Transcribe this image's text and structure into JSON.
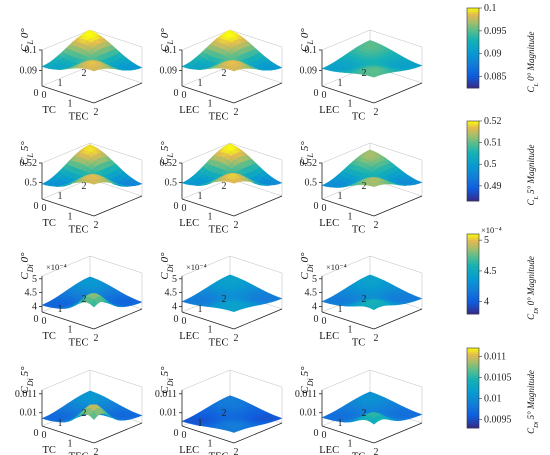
{
  "chart_data": {
    "type": "surface3d-grid",
    "colormap": "parula",
    "rows": [
      {
        "zlabel": "C_L 0°",
        "colorbar": {
          "label": "C_L 0° Magnitude",
          "range": [
            0.0825,
            0.1
          ],
          "ticks": [
            "0.1",
            "0.095",
            "0.09",
            "0.085"
          ],
          "exponent": ""
        },
        "zticks": [
          "0.1",
          "0.09"
        ],
        "zrange": [
          0.0825,
          0.1
        ],
        "exponent": "",
        "panels": [
          {
            "xlabel": "TEC",
            "ylabel": "TC",
            "xticks": [
              "0",
              "1",
              "2"
            ],
            "yticks": [
              "0",
              "1",
              "2"
            ],
            "mean": 0.095,
            "amp": 0.004,
            "tilt": 0.002,
            "peak": 0
          },
          {
            "xlabel": "TEC",
            "ylabel": "LEC",
            "xticks": [
              "0",
              "1",
              "2"
            ],
            "yticks": [
              "0",
              "1",
              "2"
            ],
            "mean": 0.095,
            "amp": 0.004,
            "tilt": 0.002,
            "peak": 0
          },
          {
            "xlabel": "TC",
            "ylabel": "LEC",
            "xticks": [
              "0",
              "1",
              "2"
            ],
            "yticks": [
              "0",
              "1",
              "2"
            ],
            "mean": 0.093,
            "amp": 0.002,
            "tilt": 0,
            "peak": 0
          }
        ]
      },
      {
        "zlabel": "C_L 5°",
        "colorbar": {
          "label": "C_L 5° Magnitude",
          "range": [
            0.483,
            0.52
          ],
          "ticks": [
            "0.52",
            "0.51",
            "0.5",
            "0.49"
          ],
          "exponent": ""
        },
        "zticks": [
          "0.52",
          "0.5"
        ],
        "zrange": [
          0.483,
          0.52
        ],
        "exponent": "",
        "panels": [
          {
            "xlabel": "TEC",
            "ylabel": "TC",
            "xticks": [
              "0",
              "1",
              "2"
            ],
            "yticks": [
              "0",
              "1",
              "2"
            ],
            "mean": 0.507,
            "amp": 0.01,
            "tilt": 0.003,
            "peak": 0
          },
          {
            "xlabel": "TEC",
            "ylabel": "LEC",
            "xticks": [
              "0",
              "1",
              "2"
            ],
            "yticks": [
              "0",
              "1",
              "2"
            ],
            "mean": 0.508,
            "amp": 0.01,
            "tilt": 0.003,
            "peak": 0
          },
          {
            "xlabel": "TC",
            "ylabel": "LEC",
            "xticks": [
              "0",
              "1",
              "2"
            ],
            "yticks": [
              "0",
              "1",
              "2"
            ],
            "mean": 0.505,
            "amp": 0.008,
            "tilt": 0,
            "peak": 0
          }
        ]
      },
      {
        "zlabel": "C_Di 0°",
        "colorbar": {
          "label": "C_Di 0° Magnitude",
          "range": [
            3.8,
            5.1
          ],
          "ticks": [
            "5",
            "4.5",
            "4"
          ],
          "exponent": "×10⁻⁴"
        },
        "zticks": [
          "5",
          "4.5",
          "4"
        ],
        "zrange": [
          3.8,
          5.1
        ],
        "exponent": "×10⁻⁴",
        "panels": [
          {
            "xlabel": "TEC",
            "ylabel": "TC",
            "xticks": [
              "0",
              "1",
              "2"
            ],
            "yticks": [
              "0",
              "1",
              "2"
            ],
            "mean": 4.2,
            "amp": 0.15,
            "tilt": 0,
            "peak": 0.5
          },
          {
            "xlabel": "TEC",
            "ylabel": "LEC",
            "xticks": [
              "0",
              "1",
              "2"
            ],
            "yticks": [
              "0",
              "1",
              "2"
            ],
            "mean": 4.3,
            "amp": 0.12,
            "tilt": 0,
            "peak": 0
          },
          {
            "xlabel": "TC",
            "ylabel": "LEC",
            "xticks": [
              "0",
              "1",
              "2"
            ],
            "yticks": [
              "0",
              "1",
              "2"
            ],
            "mean": 4.3,
            "amp": 0.12,
            "tilt": 0,
            "peak": 0.15
          }
        ]
      },
      {
        "zlabel": "C_Di 5°",
        "colorbar": {
          "label": "C_Di 5° Magnitude",
          "range": [
            0.0093,
            0.0112
          ],
          "ticks": [
            "0.011",
            "0.0105",
            "0.01",
            "0.0095"
          ],
          "exponent": ""
        },
        "zticks": [
          "0.011",
          "0.01"
        ],
        "zrange": [
          0.0093,
          0.0112
        ],
        "exponent": "",
        "panels": [
          {
            "xlabel": "TEC",
            "ylabel": "TC",
            "xticks": [
              "0",
              "1",
              "2"
            ],
            "yticks": [
              "0",
              "1",
              "2"
            ],
            "mean": 0.0099,
            "amp": 0.0002,
            "tilt": 0,
            "peak": 0.0009
          },
          {
            "xlabel": "TEC",
            "ylabel": "LEC",
            "xticks": [
              "0",
              "1",
              "2"
            ],
            "yticks": [
              "0",
              "1",
              "2"
            ],
            "mean": 0.0097,
            "amp": 0.00015,
            "tilt": 0,
            "peak": 0
          },
          {
            "xlabel": "TC",
            "ylabel": "LEC",
            "xticks": [
              "0",
              "1",
              "2"
            ],
            "yticks": [
              "0",
              "1",
              "2"
            ],
            "mean": 0.0099,
            "amp": 0.00015,
            "tilt": 0,
            "peak": 0.0005
          }
        ]
      }
    ]
  }
}
